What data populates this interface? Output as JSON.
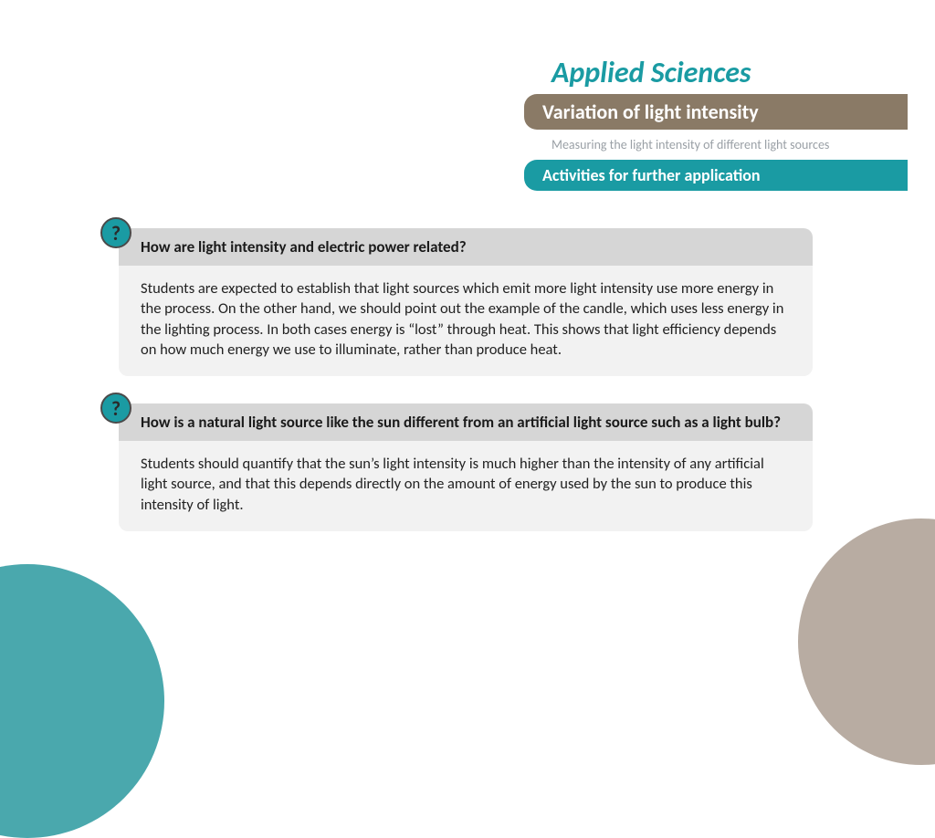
{
  "brand": "Applied Sciences",
  "topic": "Variation of light intensity",
  "subtitle": "Measuring the light intensity of different light sources",
  "section": "Activities for further application",
  "badge_symbol": "?",
  "colors": {
    "teal": "#1a9ba3",
    "brown": "#8a7a66",
    "light_teal": "#4aa8ad",
    "beige": "#b8aca2",
    "q_header_bg": "#d6d6d6",
    "q_body_bg": "#f2f2f2"
  },
  "questions": [
    {
      "q": "How are light intensity and electric power related?",
      "a": "Students are expected to establish that light sources which emit more light intensity use more energy in the process. On the other hand, we should point out the example of the candle, which uses less energy in the lighting process. In both cases energy is “lost” through heat. This shows that light efficiency depends on how much energy we use to illuminate, rather than produce heat."
    },
    {
      "q": "How is a natural light source like the sun different from an artificial light source such as a light bulb?",
      "a": "Students should quantify that the sun’s light intensity is much higher than the intensity of any artificial light source, and that this depends directly on the amount of energy used by the sun to produce this intensity of light."
    }
  ]
}
